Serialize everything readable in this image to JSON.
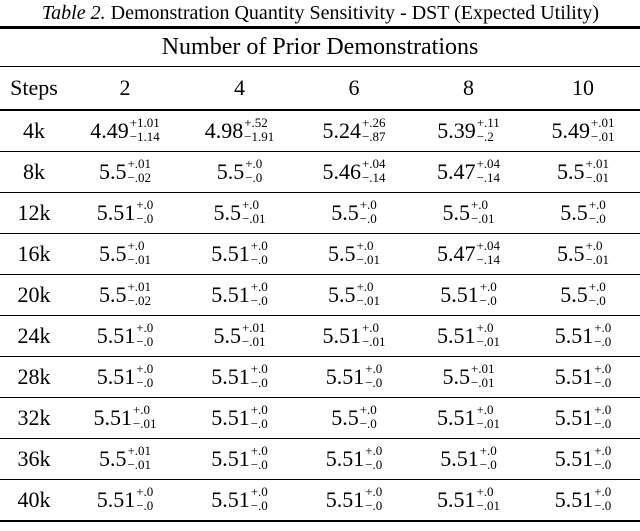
{
  "caption": {
    "label": "Table 2.",
    "text": "Demonstration Quantity Sensitivity - DST (Expected Utility)"
  },
  "table": {
    "group_header": "Number of Prior Demonstrations",
    "col_headers": [
      "Steps",
      "2",
      "4",
      "6",
      "8",
      "10"
    ],
    "rows": [
      {
        "step": "4k",
        "values": [
          {
            "main": "4.49",
            "sup": "+1.01",
            "sub": "−1.14"
          },
          {
            "main": "4.98",
            "sup": "+.52",
            "sub": "−1.91"
          },
          {
            "main": "5.24",
            "sup": "+.26",
            "sub": "−.87"
          },
          {
            "main": "5.39",
            "sup": "+.11",
            "sub": "−.2"
          },
          {
            "main": "5.49",
            "sup": "+.01",
            "sub": "−.01"
          }
        ]
      },
      {
        "step": "8k",
        "values": [
          {
            "main": "5.5",
            "sup": "+.01",
            "sub": "−.02"
          },
          {
            "main": "5.5",
            "sup": "+.0",
            "sub": "−.0"
          },
          {
            "main": "5.46",
            "sup": "+.04",
            "sub": "−.14"
          },
          {
            "main": "5.47",
            "sup": "+.04",
            "sub": "−.14"
          },
          {
            "main": "5.5",
            "sup": "+.01",
            "sub": "−.01"
          }
        ]
      },
      {
        "step": "12k",
        "values": [
          {
            "main": "5.51",
            "sup": "+.0",
            "sub": "−.0"
          },
          {
            "main": "5.5",
            "sup": "+.0",
            "sub": "−.01"
          },
          {
            "main": "5.5",
            "sup": "+.0",
            "sub": "−.0"
          },
          {
            "main": "5.5",
            "sup": "+.0",
            "sub": "−.01"
          },
          {
            "main": "5.5",
            "sup": "+.0",
            "sub": "−.0"
          }
        ]
      },
      {
        "step": "16k",
        "values": [
          {
            "main": "5.5",
            "sup": "+.0",
            "sub": "−.01"
          },
          {
            "main": "5.51",
            "sup": "+.0",
            "sub": "−.0"
          },
          {
            "main": "5.5",
            "sup": "+.0",
            "sub": "−.01"
          },
          {
            "main": "5.47",
            "sup": "+.04",
            "sub": "−.14"
          },
          {
            "main": "5.5",
            "sup": "+.0",
            "sub": "−.01"
          }
        ]
      },
      {
        "step": "20k",
        "values": [
          {
            "main": "5.5",
            "sup": "+.01",
            "sub": "−.02"
          },
          {
            "main": "5.51",
            "sup": "+.0",
            "sub": "−.0"
          },
          {
            "main": "5.5",
            "sup": "+.0",
            "sub": "−.01"
          },
          {
            "main": "5.51",
            "sup": "+.0",
            "sub": "−.0"
          },
          {
            "main": "5.5",
            "sup": "+.0",
            "sub": "−.0"
          }
        ]
      },
      {
        "step": "24k",
        "values": [
          {
            "main": "5.51",
            "sup": "+.0",
            "sub": "−.0"
          },
          {
            "main": "5.5",
            "sup": "+.01",
            "sub": "−.01"
          },
          {
            "main": "5.51",
            "sup": "+.0",
            "sub": "−.01"
          },
          {
            "main": "5.51",
            "sup": "+.0",
            "sub": "−.01"
          },
          {
            "main": "5.51",
            "sup": "+.0",
            "sub": "−.0"
          }
        ]
      },
      {
        "step": "28k",
        "values": [
          {
            "main": "5.51",
            "sup": "+.0",
            "sub": "−.0"
          },
          {
            "main": "5.51",
            "sup": "+.0",
            "sub": "−.0"
          },
          {
            "main": "5.51",
            "sup": "+.0",
            "sub": "−.0"
          },
          {
            "main": "5.5",
            "sup": "+.01",
            "sub": "−.01"
          },
          {
            "main": "5.51",
            "sup": "+.0",
            "sub": "−.0"
          }
        ]
      },
      {
        "step": "32k",
        "values": [
          {
            "main": "5.51",
            "sup": "+.0",
            "sub": "−.01"
          },
          {
            "main": "5.51",
            "sup": "+.0",
            "sub": "−.0"
          },
          {
            "main": "5.5",
            "sup": "+.0",
            "sub": "−.0"
          },
          {
            "main": "5.51",
            "sup": "+.0",
            "sub": "−.01"
          },
          {
            "main": "5.51",
            "sup": "+.0",
            "sub": "−.0"
          }
        ]
      },
      {
        "step": "36k",
        "values": [
          {
            "main": "5.5",
            "sup": "+.01",
            "sub": "−.01"
          },
          {
            "main": "5.51",
            "sup": "+.0",
            "sub": "−.0"
          },
          {
            "main": "5.51",
            "sup": "+.0",
            "sub": "−.0"
          },
          {
            "main": "5.51",
            "sup": "+.0",
            "sub": "−.0"
          },
          {
            "main": "5.51",
            "sup": "+.0",
            "sub": "−.0"
          }
        ]
      },
      {
        "step": "40k",
        "values": [
          {
            "main": "5.51",
            "sup": "+.0",
            "sub": "−.0"
          },
          {
            "main": "5.51",
            "sup": "+.0",
            "sub": "−.0"
          },
          {
            "main": "5.51",
            "sup": "+.0",
            "sub": "−.0"
          },
          {
            "main": "5.51",
            "sup": "+.0",
            "sub": "−.01"
          },
          {
            "main": "5.51",
            "sup": "+.0",
            "sub": "−.0"
          }
        ]
      }
    ]
  },
  "colors": {
    "text": "#000000",
    "background": "#ffffff",
    "rule": "#000000"
  }
}
